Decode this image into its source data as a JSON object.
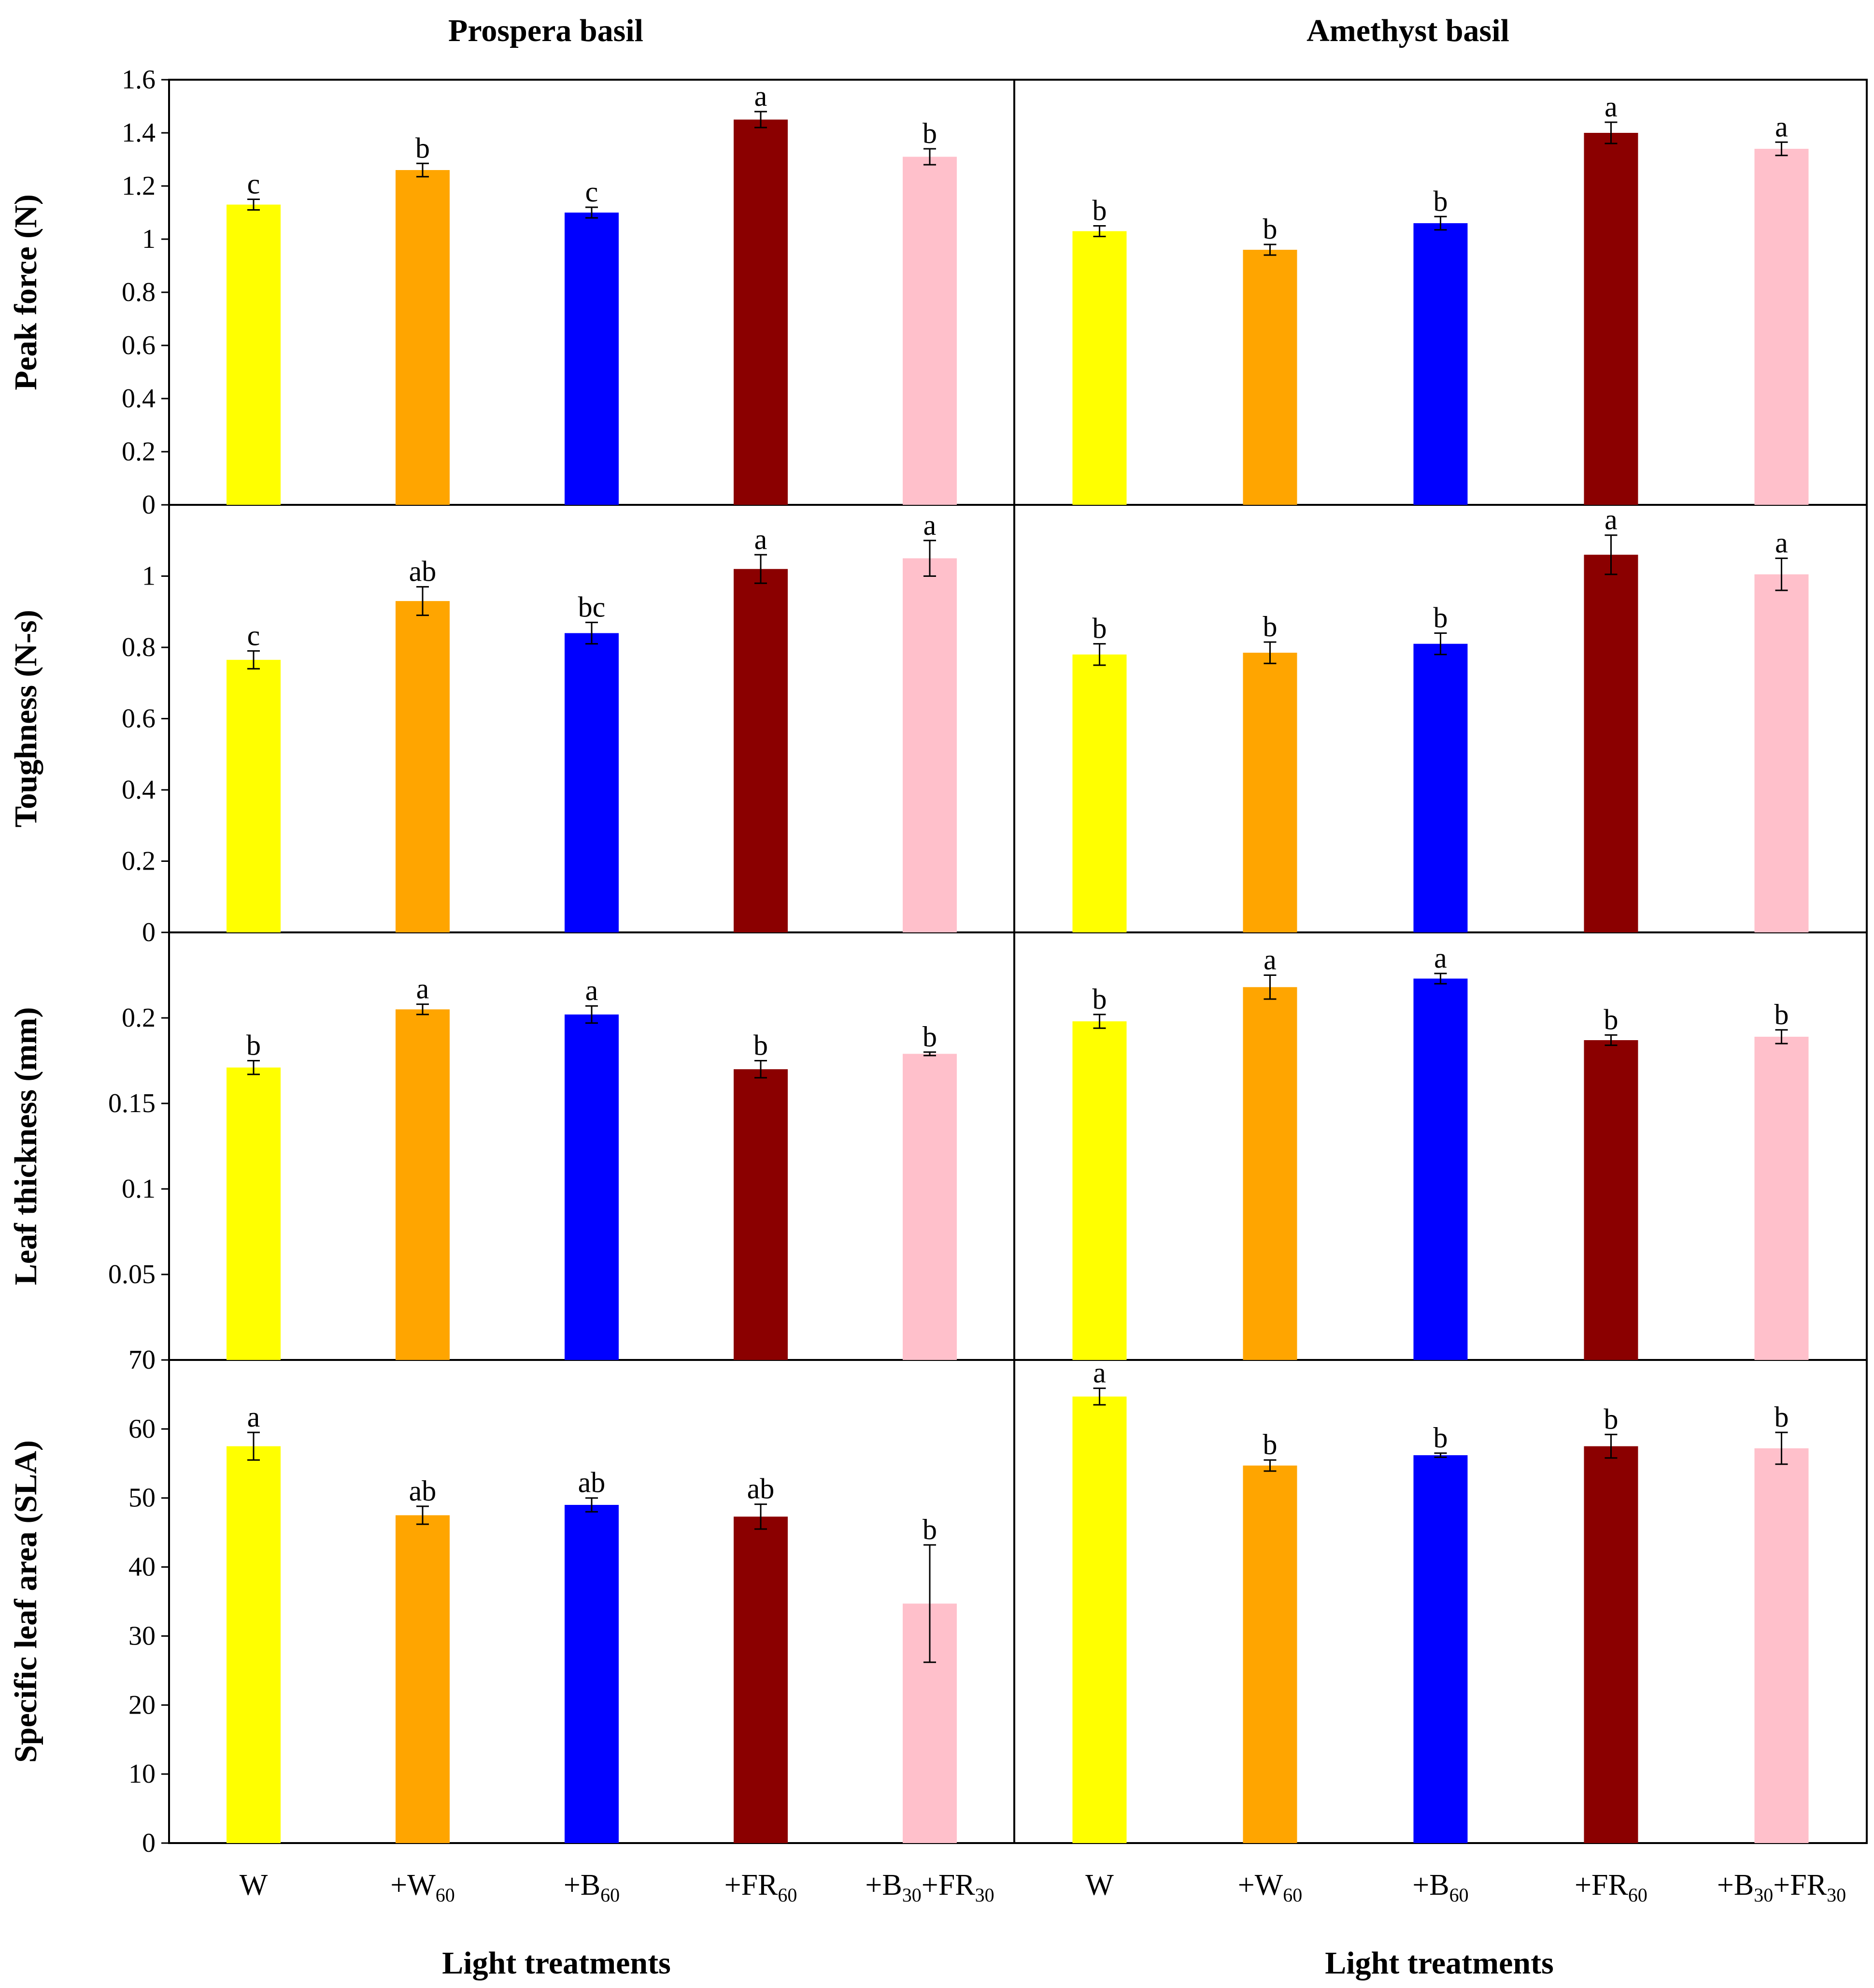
{
  "columns": [
    "Prospera basil",
    "Amethyst basil"
  ],
  "x_axis_title": "Light treatments",
  "categories": [
    {
      "base": "W",
      "parts": [
        {
          "t": "W",
          "sub": false
        }
      ]
    },
    {
      "base": "+W60",
      "parts": [
        {
          "t": "+W",
          "sub": false
        },
        {
          "t": "60",
          "sub": true
        }
      ]
    },
    {
      "base": "+B60",
      "parts": [
        {
          "t": "+B",
          "sub": false
        },
        {
          "t": "60",
          "sub": true
        }
      ]
    },
    {
      "base": "+FR60",
      "parts": [
        {
          "t": "+FR",
          "sub": false
        },
        {
          "t": "60",
          "sub": true
        }
      ]
    },
    {
      "base": "+B30+FR30",
      "parts": [
        {
          "t": "+B",
          "sub": false
        },
        {
          "t": "30",
          "sub": true
        },
        {
          "t": "+FR",
          "sub": false
        },
        {
          "t": "30",
          "sub": true
        }
      ]
    }
  ],
  "colors": {
    "bars": [
      "#ffff00",
      "#ffa500",
      "#0000ff",
      "#8b0000",
      "#ffc0cb"
    ],
    "axis": "#000000",
    "background": "#ffffff"
  },
  "chart_data": [
    {
      "type": "bar",
      "ylabel": "Peak force (N)",
      "ylim": [
        0,
        1.6
      ],
      "yticks": [
        "0",
        "0.2",
        "0.4",
        "0.6",
        "0.8",
        "1",
        "1.2",
        "1.4",
        "1.6"
      ],
      "tick_values": [
        0,
        0.2,
        0.4,
        0.6,
        0.8,
        1.0,
        1.2,
        1.4,
        1.6
      ],
      "series": [
        {
          "name": "Prospera basil",
          "values": [
            1.13,
            1.26,
            1.1,
            1.45,
            1.31
          ],
          "errors": [
            0.02,
            0.025,
            0.02,
            0.03,
            0.03
          ],
          "letters": [
            "c",
            "b",
            "c",
            "a",
            "b"
          ]
        },
        {
          "name": "Amethyst basil",
          "values": [
            1.03,
            0.96,
            1.06,
            1.4,
            1.34
          ],
          "errors": [
            0.02,
            0.02,
            0.025,
            0.04,
            0.025
          ],
          "letters": [
            "b",
            "b",
            "b",
            "a",
            "a"
          ]
        }
      ]
    },
    {
      "type": "bar",
      "ylabel": "Toughness (N-s)",
      "ylim": [
        0,
        1.2
      ],
      "yticks": [
        "0",
        "0.2",
        "0.4",
        "0.6",
        "0.8",
        "1"
      ],
      "tick_values": [
        0,
        0.2,
        0.4,
        0.6,
        0.8,
        1.0
      ],
      "series": [
        {
          "name": "Prospera basil",
          "values": [
            0.765,
            0.93,
            0.84,
            1.02,
            1.05
          ],
          "errors": [
            0.025,
            0.04,
            0.03,
            0.04,
            0.05
          ],
          "letters": [
            "c",
            "ab",
            "bc",
            "a",
            "a"
          ]
        },
        {
          "name": "Amethyst basil",
          "values": [
            0.78,
            0.785,
            0.81,
            1.06,
            1.005
          ],
          "errors": [
            0.03,
            0.03,
            0.03,
            0.055,
            0.045
          ],
          "letters": [
            "b",
            "b",
            "b",
            "a",
            "a"
          ]
        }
      ]
    },
    {
      "type": "bar",
      "ylabel": "Leaf thickness (mm)",
      "ylim": [
        0,
        0.25
      ],
      "yticks": [
        "0.05",
        "0.1",
        "0.15",
        "0.2"
      ],
      "tick_values": [
        0.05,
        0.1,
        0.15,
        0.2
      ],
      "series": [
        {
          "name": "Prospera basil",
          "values": [
            0.171,
            0.205,
            0.202,
            0.17,
            0.179
          ],
          "errors": [
            0.004,
            0.003,
            0.005,
            0.005,
            0.001
          ],
          "letters": [
            "b",
            "a",
            "a",
            "b",
            "b"
          ]
        },
        {
          "name": "Amethyst basil",
          "values": [
            0.198,
            0.218,
            0.223,
            0.187,
            0.189
          ],
          "errors": [
            0.004,
            0.007,
            0.003,
            0.003,
            0.004
          ],
          "letters": [
            "b",
            "a",
            "a",
            "b",
            "b"
          ]
        }
      ]
    },
    {
      "type": "bar",
      "ylabel": "Specific leaf area (SLA)",
      "ylim": [
        0,
        70
      ],
      "yticks": [
        "0",
        "10",
        "20",
        "30",
        "40",
        "50",
        "60",
        "70"
      ],
      "tick_values": [
        0,
        10,
        20,
        30,
        40,
        50,
        60,
        70
      ],
      "series": [
        {
          "name": "Prospera basil",
          "values": [
            57.5,
            47.5,
            49.0,
            47.3,
            34.7
          ],
          "errors": [
            2.0,
            1.3,
            1.0,
            1.8,
            8.5
          ],
          "letters": [
            "a",
            "ab",
            "ab",
            "ab",
            "b"
          ]
        },
        {
          "name": "Amethyst basil",
          "values": [
            64.7,
            54.7,
            56.2,
            57.5,
            57.2
          ],
          "errors": [
            1.2,
            0.8,
            0.3,
            1.7,
            2.3
          ],
          "letters": [
            "a",
            "b",
            "b",
            "b",
            "b"
          ]
        }
      ]
    }
  ]
}
